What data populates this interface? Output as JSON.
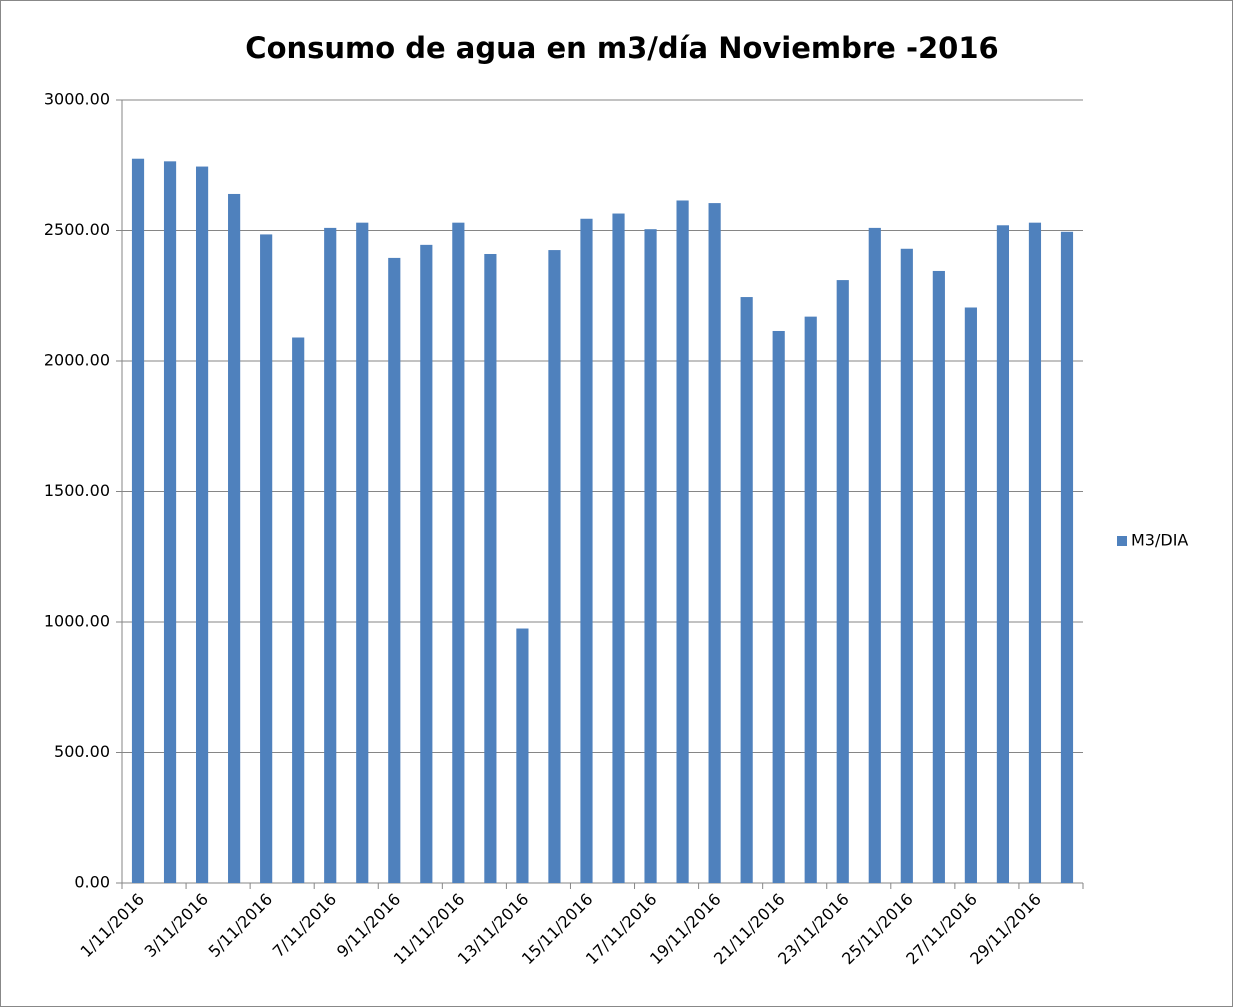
{
  "chart_data": {
    "type": "bar",
    "title": "Consumo de agua en m3/día Noviembre -2016",
    "categories": [
      "1/11/2016",
      null,
      "3/11/2016",
      null,
      "5/11/2016",
      null,
      "7/11/2016",
      null,
      "9/11/2016",
      null,
      "11/11/2016",
      null,
      "13/11/2016",
      null,
      "15/11/2016",
      null,
      "17/11/2016",
      null,
      "19/11/2016",
      null,
      "21/11/2016",
      null,
      "23/11/2016",
      null,
      "25/11/2016",
      null,
      "27/11/2016",
      null,
      "29/11/2016",
      null
    ],
    "series": [
      {
        "name": "M3/DIA",
        "color": "#4f81bd",
        "values": [
          2775,
          2765,
          2745,
          2640,
          2485,
          2090,
          2510,
          2530,
          2395,
          2445,
          2530,
          2410,
          975,
          2425,
          2545,
          2565,
          2505,
          2615,
          2605,
          2245,
          2115,
          2170,
          2310,
          2510,
          2430,
          2345,
          2205,
          2520,
          2530,
          2495
        ]
      }
    ],
    "ylim": [
      0,
      3000
    ],
    "yticks": [
      {
        "value": 0,
        "label": "0.00"
      },
      {
        "value": 500,
        "label": "500.00"
      },
      {
        "value": 1000,
        "label": "1000.00"
      },
      {
        "value": 1500,
        "label": "1500.00"
      },
      {
        "value": 2000,
        "label": "2000.00"
      },
      {
        "value": 2500,
        "label": "2500.00"
      },
      {
        "value": 3000,
        "label": "3000.00"
      }
    ],
    "grid": true,
    "legend": "right"
  }
}
